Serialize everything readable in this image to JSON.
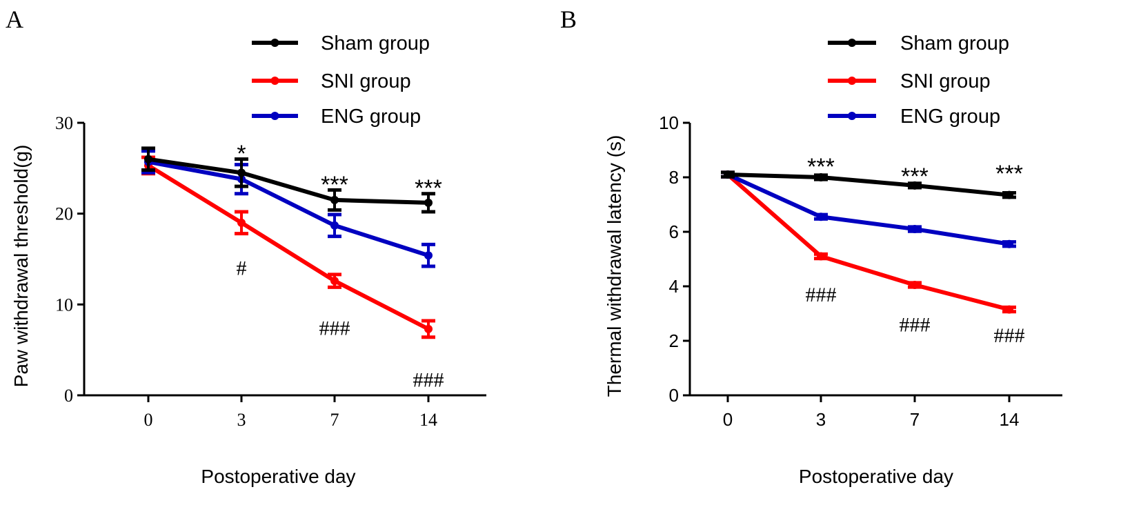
{
  "chart_data": [
    {
      "panel": "A",
      "type": "line",
      "title": "",
      "xlabel": "Postoperative day",
      "ylabel": "Paw withdrawal threshold(g)",
      "categories": [
        "0",
        "3",
        "7",
        "14"
      ],
      "ylim": [
        0,
        30
      ],
      "yticks": [
        "0",
        "10",
        "20",
        "30"
      ],
      "legend_position": "top",
      "series": [
        {
          "name": "Sham group",
          "color": "#000000",
          "values": [
            26.0,
            24.5,
            21.5,
            21.2
          ],
          "errors": [
            1.2,
            1.5,
            1.1,
            1.0
          ]
        },
        {
          "name": "SNI group",
          "color": "#ff0000",
          "values": [
            25.3,
            19.0,
            12.6,
            7.3
          ],
          "errors": [
            0.9,
            1.2,
            0.7,
            0.9
          ]
        },
        {
          "name": "ENG group",
          "color": "#0000c0",
          "values": [
            25.7,
            23.8,
            18.7,
            15.4
          ],
          "errors": [
            1.2,
            1.6,
            1.2,
            1.2
          ]
        }
      ],
      "annotations": [
        {
          "text": "*",
          "x": 1,
          "y": 26.8
        },
        {
          "text": "***",
          "x": 2,
          "y": 23.4
        },
        {
          "text": "***",
          "x": 3,
          "y": 23.0
        },
        {
          "text": "#",
          "x": 1,
          "y": 14.0
        },
        {
          "text": "###",
          "x": 2,
          "y": 7.4
        },
        {
          "text": "###",
          "x": 3,
          "y": 1.7
        }
      ]
    },
    {
      "panel": "B",
      "type": "line",
      "title": "",
      "xlabel": "Postoperative day",
      "ylabel": "Thermal withdrawal latency (s)",
      "categories": [
        "0",
        "3",
        "7",
        "14"
      ],
      "ylim": [
        0,
        10
      ],
      "yticks": [
        "0",
        "2",
        "4",
        "6",
        "8",
        "10"
      ],
      "legend_position": "top",
      "series": [
        {
          "name": "Sham group",
          "color": "#000000",
          "values": [
            8.1,
            8.0,
            7.7,
            7.35
          ],
          "errors": [
            0.08,
            0.08,
            0.08,
            0.08
          ]
        },
        {
          "name": "SNI group",
          "color": "#ff0000",
          "values": [
            8.1,
            5.1,
            4.05,
            3.15
          ],
          "errors": [
            0.08,
            0.08,
            0.08,
            0.08
          ]
        },
        {
          "name": "ENG group",
          "color": "#0000c0",
          "values": [
            8.1,
            6.55,
            6.1,
            5.55
          ],
          "errors": [
            0.08,
            0.08,
            0.08,
            0.08
          ]
        }
      ],
      "annotations": [
        {
          "text": "***",
          "x": 1,
          "y": 8.45
        },
        {
          "text": "***",
          "x": 2,
          "y": 8.1
        },
        {
          "text": "***",
          "x": 3,
          "y": 8.2
        },
        {
          "text": "###",
          "x": 1,
          "y": 3.7
        },
        {
          "text": "###",
          "x": 2,
          "y": 2.6
        },
        {
          "text": "###",
          "x": 3,
          "y": 2.2
        }
      ]
    }
  ]
}
